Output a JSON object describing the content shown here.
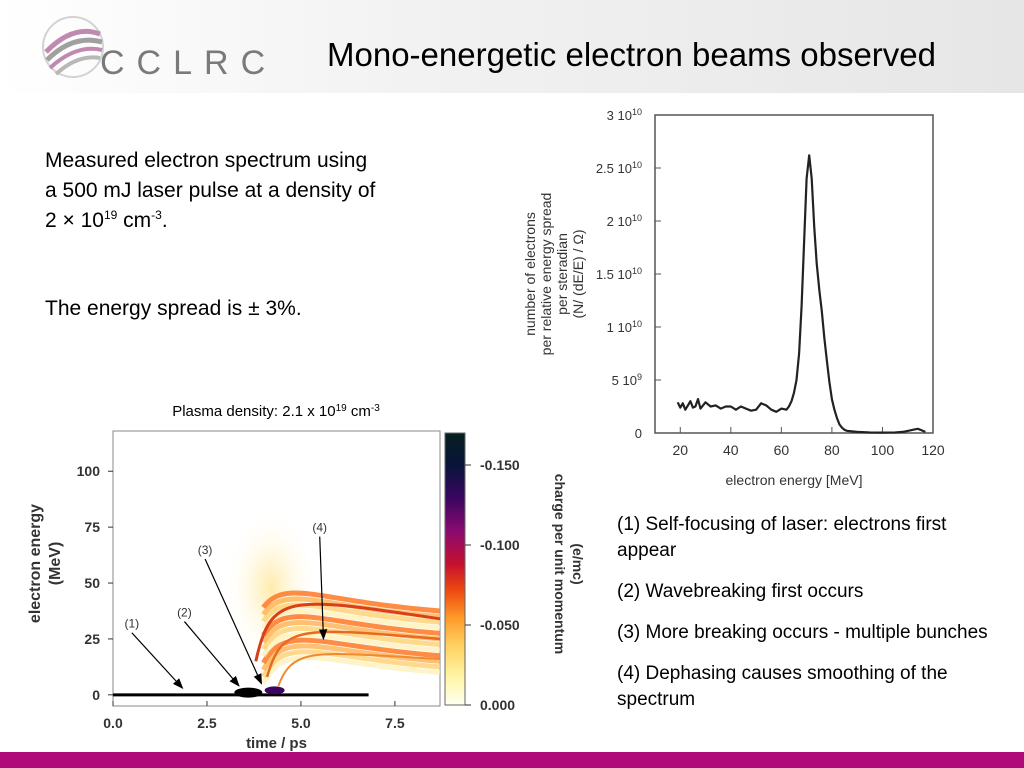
{
  "header": {
    "logo_text": "CCLRC",
    "title": "Mono-energetic electron beams observed"
  },
  "intro": {
    "line1": "Measured electron spectrum using",
    "line2": "a 500 mJ laser pulse at a density of",
    "line3_prefix": "2 × 10",
    "line3_exp": "19",
    "line3_unit": " cm",
    "line3_unit_exp": "-3",
    "line3_end": "."
  },
  "energy_spread": "The energy spread is ± 3%.",
  "notes": [
    "(1) Self-focusing of laser:  electrons first appear",
    "(2) Wavebreaking first occurs",
    "(3) More breaking occurs - multiple bunches",
    "(4) Dephasing causes smoothing of the spectrum"
  ],
  "chart_data": [
    {
      "type": "line",
      "xlabel": "electron energy [MeV]",
      "ylabel_lines": [
        "number of electrons",
        "per relative energy spread",
        "per steradian",
        "(N/ (dE/E) / Ω)"
      ],
      "xlim": [
        10,
        120
      ],
      "ylim": [
        0,
        30000000000.0
      ],
      "xticks": [
        20,
        40,
        60,
        80,
        100,
        120
      ],
      "xtick_labels": [
        "20",
        "40",
        "60",
        "80",
        "100",
        "120"
      ],
      "yticks": [
        0,
        5000000000.0,
        10000000000.0,
        15000000000.0,
        20000000000.0,
        25000000000.0,
        30000000000.0
      ],
      "ytick_labels": [
        {
          "mant": "0",
          "exp": ""
        },
        {
          "mant": "5 10",
          "exp": "9"
        },
        {
          "mant": "1 10",
          "exp": "10"
        },
        {
          "mant": "1.5 10",
          "exp": "10"
        },
        {
          "mant": "2 10",
          "exp": "10"
        },
        {
          "mant": "2.5 10",
          "exp": "10"
        },
        {
          "mant": "3 10",
          "exp": "10"
        }
      ],
      "x": [
        19,
        20,
        21,
        22,
        23,
        24,
        25,
        26,
        27,
        28,
        30,
        32,
        34,
        36,
        38,
        40,
        42,
        44,
        46,
        48,
        50,
        52,
        54,
        56,
        58,
        60,
        62,
        63,
        64,
        65,
        66,
        67,
        68,
        69,
        70,
        71,
        72,
        73,
        74,
        75,
        76,
        77,
        78,
        79,
        80,
        81,
        82,
        83,
        84,
        85,
        86,
        88,
        90,
        95,
        100,
        105,
        108,
        110,
        112,
        114,
        115,
        116,
        117
      ],
      "y": [
        2900000000.0,
        2400000000.0,
        2800000000.0,
        2200000000.0,
        2600000000.0,
        3000000000.0,
        2400000000.0,
        2500000000.0,
        3200000000.0,
        2300000000.0,
        2900000000.0,
        2500000000.0,
        2600000000.0,
        2300000000.0,
        2500000000.0,
        2500000000.0,
        2200000000.0,
        2500000000.0,
        2300000000.0,
        2100000000.0,
        2200000000.0,
        2800000000.0,
        2600000000.0,
        2200000000.0,
        2000000000.0,
        2300000000.0,
        2200000000.0,
        2500000000.0,
        3000000000.0,
        3800000000.0,
        5000000000.0,
        7500000000.0,
        12000000000.0,
        18000000000.0,
        24000000000.0,
        26200000000.0,
        24000000000.0,
        19500000000.0,
        16000000000.0,
        13500000000.0,
        11500000000.0,
        9000000000.0,
        6800000000.0,
        4800000000.0,
        3200000000.0,
        2200000000.0,
        1400000000.0,
        800000000.0,
        500000000.0,
        300000000.0,
        200000000.0,
        150000000.0,
        100000000.0,
        50000000.0,
        40000000.0,
        50000000.0,
        100000000.0,
        200000000.0,
        300000000.0,
        400000000.0,
        300000000.0,
        200000000.0,
        100000000.0
      ]
    },
    {
      "type": "heatmap",
      "title": "Plasma density: 2.1 x 10",
      "title_exp": "19",
      "title_unit": " cm",
      "title_unit_exp": "-3",
      "xlabel": "time / ps",
      "ylabel_lines": [
        "electron energy",
        "(MeV)"
      ],
      "xlim": [
        0,
        8.7
      ],
      "ylim": [
        -5,
        118
      ],
      "xticks": [
        0,
        2.5,
        5,
        7.5
      ],
      "xtick_labels": [
        "0.0",
        "2.5",
        "5.0",
        "7.5"
      ],
      "yticks": [
        0,
        25,
        50,
        75,
        100
      ],
      "ytick_labels": [
        "0",
        "25",
        "50",
        "75",
        "100"
      ],
      "colorbar": {
        "label_lines": [
          "charge per unit momentum",
          "(e/mc)"
        ],
        "ticks": [
          0,
          -0.05,
          -0.1,
          -0.15
        ],
        "tick_labels": [
          "0.000",
          "-0.050",
          "-0.100",
          "-0.150"
        ],
        "range": [
          0,
          -0.17
        ],
        "colors": [
          "#fffff2",
          "#fff6a8",
          "#ffd060",
          "#ff9a2a",
          "#ee4a10",
          "#c41030",
          "#8a0a70",
          "#3a0660",
          "#08143a",
          "#06201e"
        ]
      },
      "annotations": [
        {
          "label": "(1)",
          "text_xy": [
            0.5,
            30
          ],
          "arrow_to": [
            1.85,
            3
          ]
        },
        {
          "label": "(2)",
          "text_xy": [
            1.9,
            35
          ],
          "arrow_to": [
            3.35,
            4
          ]
        },
        {
          "label": "(3)",
          "text_xy": [
            2.45,
            63
          ],
          "arrow_to": [
            3.95,
            5
          ]
        },
        {
          "label": "(4)",
          "text_xy": [
            5.5,
            73
          ],
          "arrow_to": [
            5.6,
            25
          ]
        }
      ]
    }
  ]
}
